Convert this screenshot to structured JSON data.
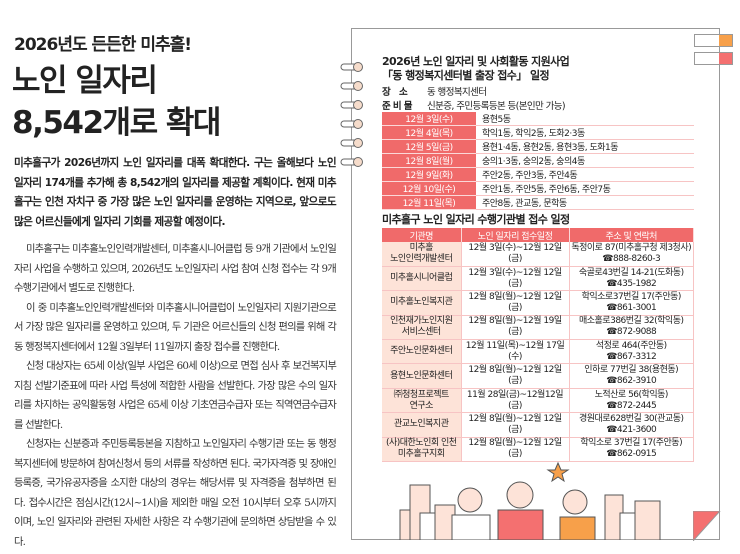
{
  "article": {
    "kicker": "2026년도 든든한 미추홀!",
    "headline_line1": "노인 일자리",
    "headline_line2": "8,542개로 확대",
    "lead": "미추홀구가 2026년까지 노인 일자리를 대폭 확대한다. 구는 올해보다 노인 일자리 174개를 추가해 총 8,542개의 일자리를 제공할 계획이다. 현재 미추홀구는 인천 자치구 중 가장 많은 노인 일자리를 운영하는 지역으로, 앞으로도 많은 어르신들에게 일자리 기회를 제공할 예정이다.",
    "paragraphs": [
      "미추홀구는 미추홀노인인력개발센터, 미추홀시니어클럽 등 9개 기관에서 노인일자리 사업을 수행하고 있으며, 2026년도 노인일자리 사업 참여 신청 접수는 각 9개 수행기관에서 별도로 진행한다.",
      "이 중 미추홀노인인력개발센터와 미추홀시니어클럽이 노인일자리 지원기관으로서 가장 많은 일자리를 운영하고 있으며, 두 기관은 어르신들의 신청 편의를 위해 각 동 행정복지센터에서 12월 3일부터 11일까지 출장 접수를 진행한다.",
      "신청 대상자는 65세 이상(일부 사업은 60세 이상)으로 면접 심사 후 보건복지부 지침 선발기준표에 따라 사업 특성에 적합한 사람을 선발한다. 가장 많은 수의 일자리를 차지하는 공익활동형 사업은 65세 이상 기초연금수급자 또는 직역연금수급자를 선발한다.",
      "신청자는 신분증과 주민등록등본을 지참하고 노인일자리 수행기관 또는 동 행정복지센터에 방문하여 참여신청서 등의 서류를 작성하면 된다. 국가자격증 및 장애인등록증, 국가유공자증을 소지한 대상의 경우는 해당서류 및 자격증을 첨부하면 된다. 접수시간은 점심시간(12시~1시)을 제외한 매일 오전 10시부터 오후 5시까지이며, 노인 일자리와 관련된 자세한 사항은 각 수행기관에 문의하면 상담받을 수 있다."
    ]
  },
  "panel": {
    "title_line1": "2026년 노인 일자리 및 사회활동 지원사업",
    "title_line2": "「동 행정복지센터별 출장 접수」 일정",
    "place_label": "장　소",
    "place_value": "동 행정복지센터",
    "prep_label": "준 비 물",
    "prep_value": "신분증, 주민등록등본 등(본인만 가능)",
    "schedule": [
      {
        "date": "12월 3일(수)",
        "dongs": "용현5동"
      },
      {
        "date": "12월 4일(목)",
        "dongs": "학익1동, 학익2동, 도화2·3동"
      },
      {
        "date": "12월 5일(금)",
        "dongs": "용현1·4동, 용현2동, 용현3동, 도화1동"
      },
      {
        "date": "12월 8일(월)",
        "dongs": "숭의1·3동, 숭의2동, 숭의4동"
      },
      {
        "date": "12월 9일(화)",
        "dongs": "주안2동, 주안3동, 주안4동"
      },
      {
        "date": "12월 10일(수)",
        "dongs": "주안1동, 주안5동, 주안6동, 주안7동"
      },
      {
        "date": "12월 11일(목)",
        "dongs": "주안8동, 관교동, 문학동"
      }
    ],
    "agency_title": "미추홀구 노인 일자리 수행기관별 접수 일정",
    "agency_headers": [
      "기관명",
      "노인 일자리 접수일정",
      "주소 및 연락처"
    ],
    "agencies": [
      {
        "name1": "미추홀",
        "name2": "노인인력개발센터",
        "period": "12월 3일(수)~12월 12일(금)",
        "addr": "독정이로 87(미추홀구청 제3청사)",
        "phone": "☎888-8260-3"
      },
      {
        "name1": "미추홀시니어클럽",
        "name2": "",
        "period": "12월 3일(수)~12월 12일(금)",
        "addr": "숙골로43번길 14-21(도화동)",
        "phone": "☎435-1982"
      },
      {
        "name1": "미추홀노인복지관",
        "name2": "",
        "period": "12월 8일(월)~12월 12일(금)",
        "addr": "학익소로37번길 17(주안동)",
        "phone": "☎861-3001"
      },
      {
        "name1": "인천재가노인지원",
        "name2": "서비스센터",
        "period": "12월 8일(월)~12월 19일(금)",
        "addr": "매소홀로386번길 32(학익동)",
        "phone": "☎872-9088"
      },
      {
        "name1": "주안노인문화센터",
        "name2": "",
        "period": "12월 11일(목)~12월 17일(수)",
        "addr": "석정로 464(주안동)",
        "phone": "☎867-3312"
      },
      {
        "name1": "용현노인문화센터",
        "name2": "",
        "period": "12월 8일(월)~12월 12일(금)",
        "addr": "인하로 77번길 38(용현동)",
        "phone": "☎862-3910"
      },
      {
        "name1": "㈜청청프로젝트",
        "name2": "연구소",
        "period": "11월 28일(금)~12월12일(금)",
        "addr": "노적산로 56(학익동)",
        "phone": "☎872-2445"
      },
      {
        "name1": "관교노인복지관",
        "name2": "",
        "period": "12월 8일(월)~12월 12일(금)",
        "addr": "경원대로628번길 30(관교동)",
        "phone": "☎421-3600"
      },
      {
        "name1": "(사)대한노인회 인천",
        "name2": "미추홀구지회",
        "period": "12월 8일(월)~12월 12일(금)",
        "addr": "학익소로 37번길 17(주안동)",
        "phone": "☎862-0915"
      }
    ],
    "colors": {
      "accent": "#f06a6a",
      "light": "#fde3d8",
      "tab1": "#f7a04a",
      "tab2": "#f47070"
    }
  }
}
